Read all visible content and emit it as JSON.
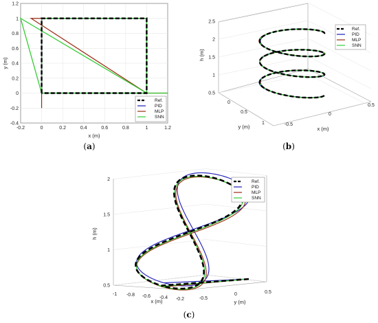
{
  "chart_data": [
    {
      "panel": "(a)",
      "type": "line",
      "xlabel": "x (m)",
      "ylabel": "y (m)",
      "xlim": [
        -0.2,
        1.2
      ],
      "ylim": [
        -0.4,
        1.2
      ],
      "xticks": [
        "-0.2",
        "0",
        "0.2",
        "0.4",
        "0.6",
        "0.8",
        "1",
        "1.2"
      ],
      "yticks": [
        "-0.4",
        "-0.2",
        "0",
        "0.2",
        "0.4",
        "0.6",
        "0.8",
        "1",
        "1.2"
      ],
      "legend": [
        "Ref.",
        "PID",
        "MLP",
        "SNN"
      ],
      "legend_position": "bottom-right",
      "series": [
        {
          "name": "Ref.",
          "x": [
            0,
            0,
            1,
            1,
            0
          ],
          "y": [
            0,
            1,
            1,
            0,
            0
          ]
        },
        {
          "name": "PID",
          "x": [
            0,
            0,
            1,
            1,
            0
          ],
          "y": [
            0,
            1,
            1,
            0,
            0
          ]
        },
        {
          "name": "MLP",
          "x": [
            0,
            0,
            1,
            1,
            -0.1,
            1,
            1,
            1.2
          ],
          "y": [
            -0.2,
            1,
            1,
            0,
            1,
            1,
            0,
            0
          ]
        },
        {
          "name": "SNN",
          "x": [
            0,
            0,
            1,
            1,
            -0.2,
            0,
            1,
            1.2
          ],
          "y": [
            0,
            1,
            1,
            0,
            1,
            0,
            0,
            0
          ]
        }
      ]
    },
    {
      "panel": "(b)",
      "type": "line",
      "xlabel": "x (m)",
      "ylabel": "y (m)",
      "zlabel": "h (m)",
      "xticks": [
        "-0.5",
        "0",
        "0.5"
      ],
      "yticks": [
        "0",
        "0.5",
        "1"
      ],
      "zticks": [
        "0.5",
        "1",
        "1.5",
        "2",
        "2.5"
      ],
      "legend": [
        "Ref.",
        "PID",
        "MLP",
        "SNN"
      ],
      "legend_position": "top-right",
      "helix": {
        "radius": 0.5,
        "h_start": 0.5,
        "h_end": 2.0,
        "turns": 3
      }
    },
    {
      "panel": "(c)",
      "type": "line",
      "xlabel": "x (m)",
      "ylabel": "y (m)",
      "zlabel": "h (m)",
      "xticks": [
        "-1",
        "-0.8",
        "-0.6",
        "-0.4",
        "-0.2"
      ],
      "yticks": [
        "-0.5",
        "0",
        "0.5"
      ],
      "zticks": [
        "0.5",
        "1",
        "1.5",
        "2"
      ],
      "legend": [
        "Ref.",
        "PID",
        "MLP",
        "SNN"
      ],
      "legend_position": "top-right"
    }
  ],
  "captions": {
    "a": "(a)",
    "b": "(b)",
    "c": "(c)"
  },
  "colors": {
    "ref": "#000000",
    "pid": "#1a1ab8",
    "mlp": "#9a2a10",
    "snn": "#33cc33",
    "grid": "#e2e2e2"
  }
}
